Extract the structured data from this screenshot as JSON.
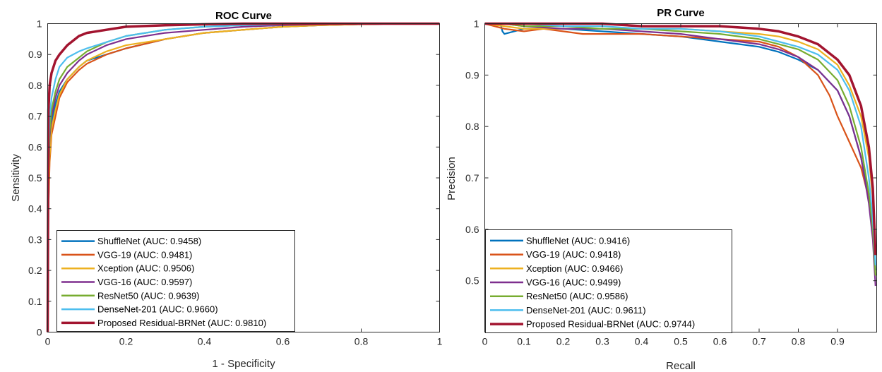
{
  "colors": {
    "ShuffleNet": "#0072BD",
    "VGG-19": "#D95319",
    "Xception": "#EDB120",
    "VGG-16": "#7E2F8E",
    "ResNet50": "#77AC30",
    "DenseNet-201": "#4DBEEE",
    "Proposed Residual-BRNet": "#A2142F"
  },
  "chart_data": [
    {
      "type": "line",
      "title": "ROC Curve",
      "xlabel": "1 - Specificity",
      "ylabel": "Sensitivity",
      "xlim": [
        0,
        1
      ],
      "ylim": [
        0,
        1
      ],
      "xticks": [
        "0",
        "0.2",
        "0.4",
        "0.6",
        "0.8",
        "1"
      ],
      "yticks": [
        "0",
        "0.1",
        "0.2",
        "0.3",
        "0.4",
        "0.5",
        "0.6",
        "0.7",
        "0.8",
        "0.9",
        "1"
      ],
      "grid": false,
      "legend_position": "bottom-left",
      "series": [
        {
          "name": "ShuffleNet (AUC: 0.9458)",
          "key": "ShuffleNet",
          "x": [
            0,
            0.002,
            0.005,
            0.01,
            0.02,
            0.03,
            0.05,
            0.08,
            0.1,
            0.15,
            0.2,
            0.3,
            0.4,
            0.5,
            0.6,
            0.7,
            0.8,
            0.9,
            1.0
          ],
          "y": [
            0,
            0.45,
            0.6,
            0.68,
            0.74,
            0.78,
            0.82,
            0.86,
            0.88,
            0.9,
            0.92,
            0.95,
            0.97,
            0.98,
            0.99,
            0.995,
            0.998,
            1.0,
            1.0
          ]
        },
        {
          "name": "VGG-19 (AUC: 0.9481)",
          "key": "VGG-19",
          "x": [
            0,
            0.002,
            0.005,
            0.01,
            0.02,
            0.03,
            0.05,
            0.08,
            0.1,
            0.15,
            0.2,
            0.3,
            0.4,
            0.5,
            0.6,
            0.7,
            0.8,
            0.9,
            1.0
          ],
          "y": [
            0,
            0.4,
            0.55,
            0.64,
            0.7,
            0.76,
            0.81,
            0.85,
            0.87,
            0.9,
            0.92,
            0.95,
            0.97,
            0.98,
            0.99,
            0.995,
            0.998,
            1.0,
            1.0
          ]
        },
        {
          "name": "Xception (AUC: 0.9506)",
          "key": "Xception",
          "x": [
            0,
            0.002,
            0.005,
            0.01,
            0.02,
            0.03,
            0.05,
            0.08,
            0.1,
            0.15,
            0.2,
            0.3,
            0.4,
            0.5,
            0.6,
            0.7,
            0.8,
            0.9,
            1.0
          ],
          "y": [
            0,
            0.42,
            0.57,
            0.66,
            0.72,
            0.77,
            0.82,
            0.86,
            0.88,
            0.91,
            0.93,
            0.95,
            0.97,
            0.98,
            0.99,
            0.995,
            0.998,
            1.0,
            1.0
          ]
        },
        {
          "name": "VGG-16 (AUC: 0.9597)",
          "key": "VGG-16",
          "x": [
            0,
            0.002,
            0.005,
            0.01,
            0.02,
            0.03,
            0.05,
            0.08,
            0.1,
            0.15,
            0.2,
            0.3,
            0.4,
            0.5,
            0.6,
            0.7,
            0.8,
            0.9,
            1.0
          ],
          "y": [
            0,
            0.5,
            0.63,
            0.7,
            0.76,
            0.8,
            0.84,
            0.88,
            0.9,
            0.93,
            0.95,
            0.97,
            0.98,
            0.99,
            0.995,
            0.998,
            1.0,
            1.0,
            1.0
          ]
        },
        {
          "name": "ResNet50 (AUC: 0.9639)",
          "key": "ResNet50",
          "x": [
            0,
            0.002,
            0.005,
            0.01,
            0.02,
            0.03,
            0.05,
            0.08,
            0.1,
            0.15,
            0.2,
            0.3,
            0.4,
            0.5,
            0.6,
            0.7,
            0.8,
            0.9,
            1.0
          ],
          "y": [
            0,
            0.52,
            0.65,
            0.72,
            0.78,
            0.82,
            0.86,
            0.89,
            0.91,
            0.94,
            0.96,
            0.98,
            0.99,
            0.995,
            0.998,
            1.0,
            1.0,
            1.0,
            1.0
          ]
        },
        {
          "name": "DenseNet-201 (AUC: 0.9660)",
          "key": "DenseNet-201",
          "x": [
            0,
            0.002,
            0.005,
            0.01,
            0.02,
            0.03,
            0.05,
            0.08,
            0.1,
            0.15,
            0.2,
            0.3,
            0.4,
            0.5,
            0.6,
            0.7,
            0.8,
            0.9,
            1.0
          ],
          "y": [
            0,
            0.55,
            0.7,
            0.76,
            0.82,
            0.86,
            0.89,
            0.91,
            0.92,
            0.94,
            0.96,
            0.98,
            0.99,
            0.995,
            0.998,
            1.0,
            1.0,
            1.0,
            1.0
          ]
        },
        {
          "name": "Proposed Residual-BRNet (AUC: 0.9810)",
          "key": "Proposed Residual-BRNet",
          "x": [
            0,
            0.002,
            0.005,
            0.01,
            0.02,
            0.03,
            0.05,
            0.08,
            0.1,
            0.15,
            0.2,
            0.3,
            0.4,
            0.5,
            0.6,
            0.7,
            0.8,
            0.9,
            1.0
          ],
          "y": [
            0,
            0.72,
            0.8,
            0.84,
            0.88,
            0.9,
            0.93,
            0.96,
            0.97,
            0.98,
            0.99,
            0.995,
            0.998,
            1.0,
            1.0,
            1.0,
            1.0,
            1.0,
            1.0
          ]
        }
      ]
    },
    {
      "type": "line",
      "title": "PR Curve",
      "xlabel": "Recall",
      "ylabel": "Precision",
      "xlim": [
        0,
        1
      ],
      "ylim": [
        0.4,
        1
      ],
      "xticks": [
        "0",
        "0.1",
        "0.2",
        "0.3",
        "0.4",
        "0.5",
        "0.6",
        "0.7",
        "0.8",
        "0.9"
      ],
      "yticks": [
        "0.5",
        "0.6",
        "0.7",
        "0.8",
        "0.9",
        "1"
      ],
      "grid": false,
      "legend_position": "bottom-left",
      "series": [
        {
          "name": "ShuffleNet (AUC: 0.9416)",
          "key": "ShuffleNet",
          "x": [
            0,
            0.04,
            0.045,
            0.05,
            0.1,
            0.2,
            0.3,
            0.4,
            0.5,
            0.6,
            0.65,
            0.7,
            0.75,
            0.8,
            0.85,
            0.9,
            0.93,
            0.96,
            0.98,
            0.99,
            0.997
          ],
          "y": [
            1,
            1,
            0.985,
            0.98,
            0.99,
            0.99,
            0.985,
            0.98,
            0.975,
            0.965,
            0.96,
            0.955,
            0.945,
            0.93,
            0.91,
            0.87,
            0.82,
            0.74,
            0.66,
            0.6,
            0.52
          ]
        },
        {
          "name": "VGG-19 (AUC: 0.9418)",
          "key": "VGG-19",
          "x": [
            0,
            0.05,
            0.1,
            0.15,
            0.2,
            0.25,
            0.3,
            0.4,
            0.5,
            0.6,
            0.7,
            0.75,
            0.8,
            0.85,
            0.88,
            0.9,
            0.93,
            0.96,
            0.98,
            0.99,
            0.997
          ],
          "y": [
            1,
            0.99,
            0.985,
            0.99,
            0.985,
            0.98,
            0.98,
            0.98,
            0.975,
            0.97,
            0.965,
            0.955,
            0.935,
            0.9,
            0.86,
            0.82,
            0.77,
            0.72,
            0.66,
            0.62,
            0.55
          ]
        },
        {
          "name": "Xception (AUC: 0.9466)",
          "key": "Xception",
          "x": [
            0,
            0.05,
            0.1,
            0.2,
            0.3,
            0.4,
            0.5,
            0.6,
            0.7,
            0.75,
            0.8,
            0.85,
            0.9,
            0.93,
            0.96,
            0.98,
            0.99,
            0.997
          ],
          "y": [
            1,
            0.995,
            0.99,
            0.99,
            0.99,
            0.99,
            0.99,
            0.985,
            0.98,
            0.975,
            0.965,
            0.95,
            0.92,
            0.88,
            0.82,
            0.74,
            0.66,
            0.55
          ]
        },
        {
          "name": "VGG-16 (AUC: 0.9499)",
          "key": "VGG-16",
          "x": [
            0,
            0.05,
            0.1,
            0.2,
            0.3,
            0.4,
            0.5,
            0.6,
            0.7,
            0.75,
            0.8,
            0.85,
            0.9,
            0.93,
            0.96,
            0.98,
            0.99,
            0.997
          ],
          "y": [
            1,
            1,
            0.995,
            0.99,
            0.99,
            0.985,
            0.98,
            0.97,
            0.96,
            0.95,
            0.935,
            0.91,
            0.87,
            0.82,
            0.74,
            0.65,
            0.58,
            0.49
          ]
        },
        {
          "name": "ResNet50 (AUC: 0.9586)",
          "key": "ResNet50",
          "x": [
            0,
            0.05,
            0.1,
            0.2,
            0.3,
            0.4,
            0.5,
            0.6,
            0.7,
            0.75,
            0.8,
            0.85,
            0.9,
            0.93,
            0.96,
            0.98,
            0.99,
            0.997
          ],
          "y": [
            1,
            1,
            0.995,
            0.995,
            0.99,
            0.99,
            0.985,
            0.98,
            0.97,
            0.96,
            0.95,
            0.93,
            0.89,
            0.84,
            0.76,
            0.67,
            0.6,
            0.51
          ]
        },
        {
          "name": "DenseNet-201 (AUC: 0.9611)",
          "key": "DenseNet-201",
          "x": [
            0,
            0.05,
            0.1,
            0.2,
            0.3,
            0.4,
            0.5,
            0.6,
            0.7,
            0.75,
            0.8,
            0.85,
            0.9,
            0.93,
            0.96,
            0.98,
            0.99,
            0.997
          ],
          "y": [
            1,
            1,
            1,
            0.995,
            0.995,
            0.99,
            0.99,
            0.985,
            0.975,
            0.965,
            0.955,
            0.94,
            0.91,
            0.87,
            0.8,
            0.7,
            0.62,
            0.53
          ]
        },
        {
          "name": "Proposed Residual-BRNet (AUC: 0.9744)",
          "key": "Proposed Residual-BRNet",
          "x": [
            0,
            0.1,
            0.2,
            0.3,
            0.4,
            0.5,
            0.6,
            0.7,
            0.75,
            0.8,
            0.85,
            0.9,
            0.93,
            0.96,
            0.98,
            0.99,
            0.997
          ],
          "y": [
            1,
            1,
            1,
            1,
            0.995,
            0.995,
            0.995,
            0.99,
            0.985,
            0.975,
            0.96,
            0.93,
            0.9,
            0.84,
            0.76,
            0.68,
            0.55
          ]
        }
      ]
    }
  ]
}
